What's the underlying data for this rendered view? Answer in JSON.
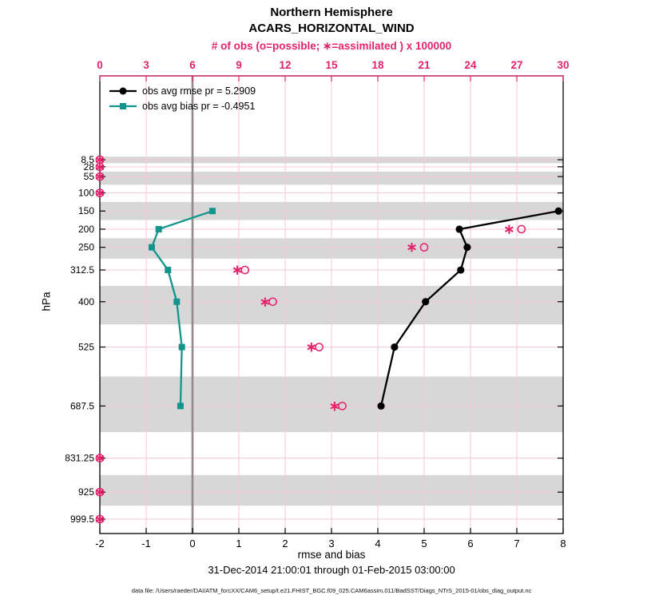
{
  "title": {
    "line1": "Northern Hemisphere",
    "line2": "ACARS_HORIZONTAL_WIND"
  },
  "axes": {
    "top": {
      "label": "# of obs (o=possible; ∗=assimilated ) x 100000",
      "ticks": [
        0,
        3,
        6,
        9,
        12,
        15,
        18,
        21,
        24,
        27,
        30
      ],
      "range": [
        0,
        30
      ]
    },
    "bottom": {
      "label": "rmse and bias",
      "ticks": [
        -2,
        -1,
        0,
        1,
        2,
        3,
        4,
        5,
        6,
        7,
        8
      ],
      "range": [
        -2,
        8
      ]
    },
    "left": {
      "label": "hPa",
      "levels": [
        8.5,
        28,
        55,
        100,
        150,
        200,
        250,
        312.5,
        400,
        525,
        687.5,
        831.25,
        925,
        999.5
      ]
    }
  },
  "legend": {
    "items": [
      {
        "label": "obs avg rmse pr = 5.2909",
        "series": "rmse"
      },
      {
        "label": "obs avg bias pr = -0.4951",
        "series": "bias"
      }
    ]
  },
  "footer": {
    "date_range": "31-Dec-2014 21:00:01 through 01-Feb-2015 03:00:00",
    "data_file": "data file: /Users/raeder/DAI/ATM_forcXX/CAM6_setup/t.e21.FHIST_BGC.f09_025.CAM6assim.011/BadSST/Diags_NTrS_2015-01/obs_diag_output.nc"
  },
  "colors": {
    "obs": "#e1246c",
    "rmse": "#000000",
    "bias": "#12958d",
    "band": "#d7d7d7",
    "grid": "#f5c9da",
    "zero_line": "#918b8b"
  },
  "chart_data": {
    "type": "line",
    "title": "Northern Hemisphere ACARS_HORIZONTAL_WIND",
    "ylabel": "hPa",
    "xlabel_bottom": "rmse and bias",
    "xlabel_top": "# of obs (o=possible; ∗=assimilated ) x 100000",
    "y_axis_note": "pressure in hPa, linear, increasing downward",
    "xlim_bottom": [
      -2,
      8
    ],
    "xlim_top_obs_x100000": [
      0,
      30
    ],
    "shaded_bands_hPa": [
      [
        0,
        18.25
      ],
      [
        41.5,
        77.5
      ],
      [
        125,
        175
      ],
      [
        225,
        281.25
      ],
      [
        356.25,
        462.5
      ],
      [
        606.25,
        759.375
      ],
      [
        878.125,
        962.25
      ]
    ],
    "series": [
      {
        "name": "obs avg rmse pr = 5.2909",
        "axis": "bottom",
        "marker": "filled-circle",
        "color": "#000000",
        "levels_hPa": [
          150,
          200,
          250,
          312.5,
          400,
          525,
          687.5
        ],
        "values": [
          7.9,
          5.76,
          5.93,
          5.79,
          5.03,
          4.36,
          4.07
        ]
      },
      {
        "name": "obs avg bias pr = -0.4951",
        "axis": "bottom",
        "marker": "filled-square",
        "color": "#12958d",
        "levels_hPa": [
          150,
          200,
          250,
          312.5,
          400,
          525,
          687.5
        ],
        "values": [
          0.43,
          -0.73,
          -0.88,
          -0.53,
          -0.34,
          -0.23,
          -0.26
        ]
      },
      {
        "name": "# of obs possible (o) x 100000",
        "axis": "top",
        "marker": "open-circle",
        "color": "#e1246c",
        "levels_hPa": [
          8.5,
          28,
          55,
          100,
          200,
          250,
          312.5,
          400,
          525,
          687.5,
          831.25,
          925,
          999.5
        ],
        "values": [
          0,
          0,
          0,
          0,
          27.3,
          21.0,
          9.4,
          11.2,
          14.2,
          15.7,
          0,
          0,
          0
        ]
      },
      {
        "name": "# of obs assimilated (∗) x 100000",
        "axis": "top",
        "marker": "asterisk",
        "color": "#e1246c",
        "levels_hPa": [
          8.5,
          28,
          55,
          100,
          200,
          250,
          312.5,
          400,
          525,
          687.5,
          831.25,
          925,
          999.5
        ],
        "values": [
          0,
          0,
          0,
          0,
          26.5,
          20.2,
          8.9,
          10.7,
          13.7,
          15.2,
          0,
          0,
          0
        ]
      }
    ]
  }
}
